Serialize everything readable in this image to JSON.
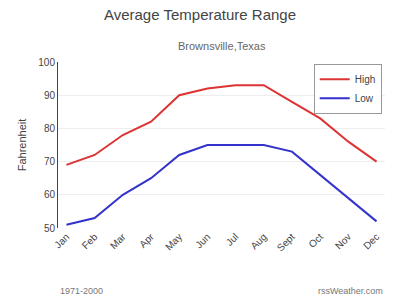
{
  "chart_data": {
    "type": "line",
    "title": "Average Temperature Range",
    "subtitle": "Brownsville,Texas",
    "ylabel": "Fahrenheit",
    "categories": [
      "Jan",
      "Feb",
      "Mar",
      "Apr",
      "May",
      "Jun",
      "Jul",
      "Aug",
      "Sept",
      "Oct",
      "Nov",
      "Dec"
    ],
    "series": [
      {
        "name": "High",
        "color": "#dd3333",
        "values": [
          69,
          72,
          78,
          82,
          90,
          92,
          93,
          93,
          88,
          83,
          76,
          70
        ]
      },
      {
        "name": "Low",
        "color": "#3333cc",
        "values": [
          51,
          53,
          60,
          65,
          72,
          75,
          75,
          75,
          73,
          66,
          59,
          52
        ]
      }
    ],
    "ylim": [
      50,
      100
    ],
    "yticks": [
      50,
      60,
      70,
      80,
      90,
      100
    ],
    "grid": true,
    "legend": "upper right",
    "annotations": [
      "1971-2000",
      "rssWeather.com"
    ]
  }
}
